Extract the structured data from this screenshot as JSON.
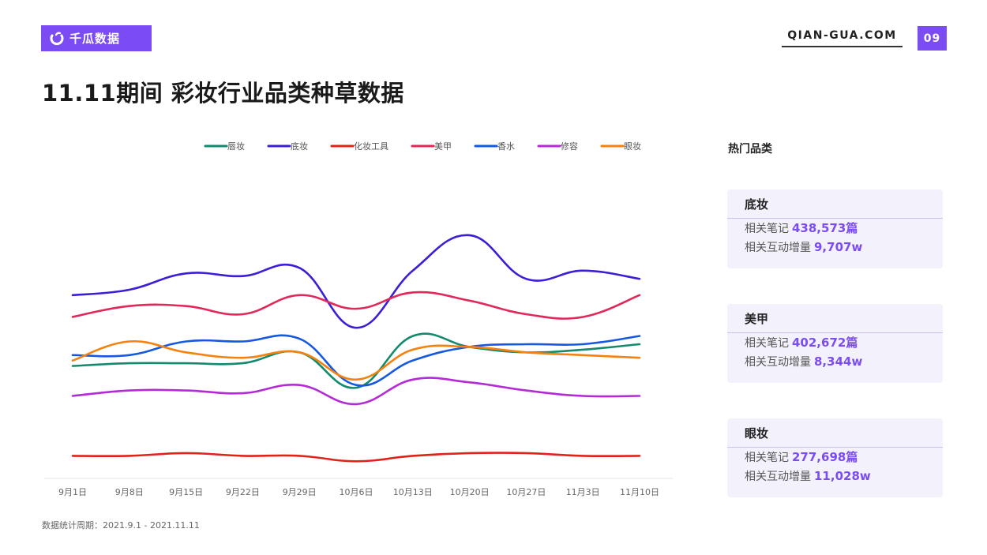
{
  "header": {
    "brand": "千瓜数据",
    "site": "QIAN-GUA.COM",
    "page_number": "09",
    "title": "11.11期间 彩妆行业品类种草数据"
  },
  "footnote": "数据统计周期：2021.9.1 - 2021.11.11",
  "sidebar": {
    "heading": "热门品类",
    "cards": [
      {
        "name": "底妆",
        "notes_label": "相关笔记",
        "notes_value": "438,573篇",
        "interact_label": "相关互动增量",
        "interact_value": "9,707w"
      },
      {
        "name": "美甲",
        "notes_label": "相关笔记",
        "notes_value": "402,672篇",
        "interact_label": "相关互动增量",
        "interact_value": "8,344w"
      },
      {
        "name": "眼妆",
        "notes_label": "相关笔记",
        "notes_value": "277,698篇",
        "interact_label": "相关互动增量",
        "interact_value": "11,028w"
      }
    ]
  },
  "chart_data": {
    "type": "line",
    "smooth": true,
    "title": "",
    "xlabel": "",
    "ylabel": "",
    "ylim": [
      0,
      100
    ],
    "grid": false,
    "y_axis_visible": false,
    "legend_position": "top-center",
    "categories": [
      "9月1日",
      "9月8日",
      "9月15日",
      "9月22日",
      "9月29日",
      "10月6日",
      "10月13日",
      "10月20日",
      "10月27日",
      "11月3日",
      "11月10日"
    ],
    "series": [
      {
        "name": "唇妆",
        "color": "#138a6e",
        "values": [
          41,
          42,
          42,
          42,
          46,
          33,
          52,
          48,
          46,
          47,
          49
        ]
      },
      {
        "name": "底妆",
        "color": "#3a1fd6",
        "values": [
          67,
          69,
          75,
          74,
          77,
          55,
          76,
          89,
          73,
          76,
          73
        ]
      },
      {
        "name": "化妆工具",
        "color": "#e0231a",
        "values": [
          8,
          8,
          9,
          8,
          8,
          6,
          8,
          9,
          9,
          8,
          8
        ]
      },
      {
        "name": "美甲",
        "color": "#e0285a",
        "values": [
          59,
          63,
          63,
          60,
          67,
          62,
          68,
          65,
          60,
          59,
          67
        ]
      },
      {
        "name": "香水",
        "color": "#1659e0",
        "values": [
          45,
          45,
          50,
          50,
          51,
          34,
          43,
          48,
          49,
          49,
          52
        ]
      },
      {
        "name": "修容",
        "color": "#b42ad6",
        "values": [
          30,
          32,
          32,
          31,
          34,
          27,
          36,
          35,
          32,
          30,
          30
        ]
      },
      {
        "name": "眼妆",
        "color": "#f5820f",
        "values": [
          43,
          50,
          46,
          44,
          46,
          36,
          47,
          48,
          46,
          45,
          44
        ]
      }
    ]
  }
}
